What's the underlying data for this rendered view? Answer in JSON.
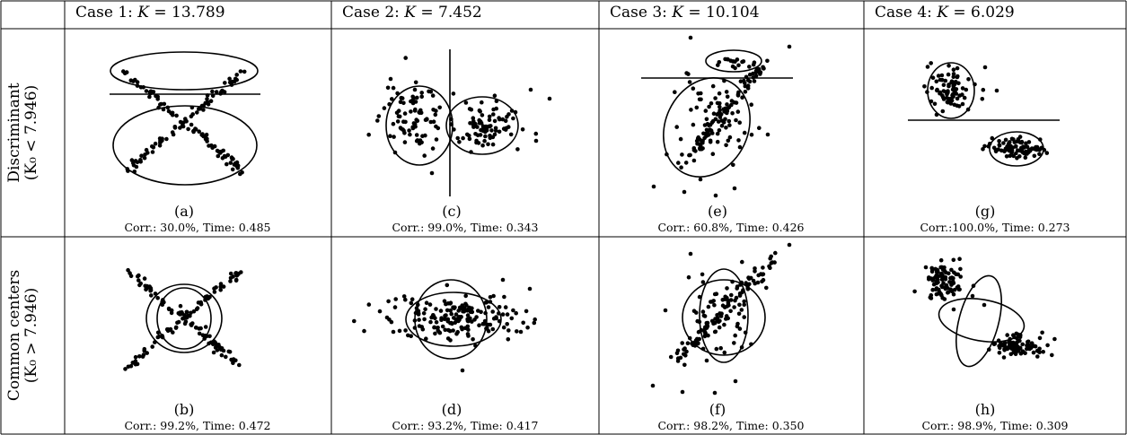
{
  "header": {
    "cases": [
      {
        "prefix": "Case 1: ",
        "var": "K",
        "value": " = 13.789"
      },
      {
        "prefix": "Case 2: ",
        "var": "K",
        "value": " = 7.452"
      },
      {
        "prefix": "Case 3: ",
        "var": "K",
        "value": " = 10.104"
      },
      {
        "prefix": "Case 4: ",
        "var": "K",
        "value": " = 6.029"
      }
    ]
  },
  "rows": [
    {
      "label_line1": "Discriminant",
      "label_line2": "(K₀ < 7.946)"
    },
    {
      "label_line1": "Common centers",
      "label_line2": "(K₀ > 7.946)"
    }
  ],
  "panels": [
    {
      "label": "(a)",
      "caption": "Corr.: 30.0%, Time: 0.485"
    },
    {
      "label": "(c)",
      "caption": "Corr.: 99.0%, Time: 0.343"
    },
    {
      "label": "(e)",
      "caption": "Corr.: 60.8%, Time: 0.426"
    },
    {
      "label": "(g)",
      "caption": "Corr.:100.0%, Time: 0.273"
    },
    {
      "label": "(b)",
      "caption": "Corr.: 99.2%, Time: 0.472"
    },
    {
      "label": "(d)",
      "caption": "Corr.: 93.2%, Time: 0.417"
    },
    {
      "label": "(f)",
      "caption": "Corr.: 98.2%, Time: 0.350"
    },
    {
      "label": "(h)",
      "caption": "Corr.: 98.9%, Time: 0.309"
    }
  ],
  "colors": {
    "ink": "#000000",
    "background": "#ffffff"
  }
}
